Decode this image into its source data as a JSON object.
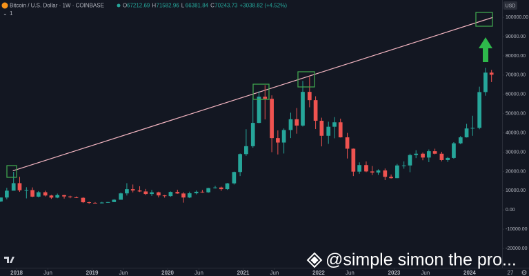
{
  "chart_data": {
    "type": "candlestick",
    "title": "Bitcoin / U.S. Dollar · 1W · COINBASE",
    "indicator_count": "1",
    "ohlc": [
      {
        "key": "O",
        "value": "67212.69"
      },
      {
        "key": "H",
        "value": "71582.96"
      },
      {
        "key": "L",
        "value": "66381.84"
      },
      {
        "key": "C",
        "value": "70243.73"
      }
    ],
    "change": "+3038.82 (+4.52%)",
    "currency": "USD",
    "x_extra_label": "27",
    "watermark": "@simple simon the pro...",
    "up_color": "#26a69a",
    "down_color": "#ef5350",
    "grid": false,
    "xlim": [
      2017.78,
      2024.43
    ],
    "ylim": [
      -30000,
      109000
    ],
    "xticks": [
      2018,
      {
        "value": 2018.415,
        "label": "Jun"
      },
      2019,
      {
        "value": 2019.415,
        "label": "Jun"
      },
      2020,
      {
        "value": 2020.415,
        "label": "Jun"
      },
      2021,
      {
        "value": 2021.415,
        "label": "Jun"
      },
      2022,
      {
        "value": 2022.415,
        "label": "Jun"
      },
      2023,
      {
        "value": 2023.415,
        "label": "Jun"
      },
      2024
    ],
    "yticks": [
      {
        "value": -20000,
        "label": "-20000.00"
      },
      {
        "value": -10000,
        "label": "-10000.00"
      },
      {
        "value": 0,
        "label": "0.00"
      },
      {
        "value": 10000,
        "label": "10000.00"
      },
      {
        "value": 20000,
        "label": "20000.00"
      },
      {
        "value": 30000,
        "label": "30000.00"
      },
      {
        "value": 40000,
        "label": "40000.00"
      },
      {
        "value": 50000,
        "label": "50000.00"
      },
      {
        "value": 60000,
        "label": "60000.00"
      },
      {
        "value": 70000,
        "label": "70000.00"
      },
      {
        "value": 80000,
        "label": "80000.00"
      },
      {
        "value": 90000,
        "label": "90000.00"
      },
      {
        "value": 100000,
        "label": "100000.00"
      }
    ],
    "trend_line": {
      "color": "#f4b6c2",
      "x": [
        2017.95,
        2024.31
      ],
      "y": [
        20300,
        100000
      ]
    },
    "x": [
      2017.79,
      2017.87,
      2017.96,
      2018.04,
      2018.13,
      2018.21,
      2018.29,
      2018.38,
      2018.46,
      2018.54,
      2018.63,
      2018.71,
      2018.79,
      2018.88,
      2018.96,
      2019.04,
      2019.13,
      2019.21,
      2019.29,
      2019.38,
      2019.46,
      2019.54,
      2019.63,
      2019.71,
      2019.79,
      2019.88,
      2019.96,
      2020.04,
      2020.13,
      2020.21,
      2020.29,
      2020.38,
      2020.46,
      2020.54,
      2020.63,
      2020.71,
      2020.79,
      2020.88,
      2020.96,
      2021.04,
      2021.13,
      2021.21,
      2021.29,
      2021.38,
      2021.46,
      2021.54,
      2021.63,
      2021.71,
      2021.79,
      2021.88,
      2021.96,
      2022.04,
      2022.13,
      2022.21,
      2022.29,
      2022.38,
      2022.46,
      2022.54,
      2022.63,
      2022.71,
      2022.79,
      2022.88,
      2022.96,
      2023.04,
      2023.13,
      2023.21,
      2023.29,
      2023.38,
      2023.46,
      2023.54,
      2023.63,
      2023.71,
      2023.79,
      2023.88,
      2023.96,
      2024.04,
      2024.13,
      2024.21,
      2024.29
    ],
    "open": [
      4400,
      6450,
      10000,
      13900,
      10200,
      10300,
      6900,
      9200,
      7500,
      6400,
      7700,
      7000,
      6600,
      6300,
      4000,
      3700,
      3450,
      3850,
      4100,
      5300,
      8600,
      10800,
      10100,
      9600,
      8300,
      9150,
      7550,
      7200,
      9350,
      8550,
      6450,
      8650,
      9450,
      9150,
      11350,
      11650,
      10800,
      13800,
      19700,
      29000,
      33100,
      45200,
      58800,
      57700,
      37300,
      35000,
      41500,
      47100,
      43800,
      61300,
      57000,
      46300,
      38500,
      43200,
      45500,
      37700,
      31800,
      19900,
      23300,
      20000,
      19400,
      20500,
      17200,
      16500,
      23100,
      23100,
      28500,
      29200,
      27200,
      30500,
      29200,
      25900,
      27000,
      34600,
      37700,
      42300,
      42600,
      61200,
      71300
    ],
    "high": [
      6450,
      11500,
      19800,
      17200,
      11800,
      11700,
      9800,
      9990,
      7800,
      8500,
      7800,
      7400,
      7000,
      6600,
      4300,
      4100,
      4200,
      4150,
      5600,
      9000,
      13900,
      13200,
      12300,
      10900,
      10400,
      9500,
      7750,
      9600,
      10500,
      9200,
      9500,
      10100,
      10400,
      11500,
      12500,
      12100,
      14000,
      19900,
      29300,
      41900,
      58300,
      61700,
      64800,
      59500,
      41300,
      42300,
      50500,
      52900,
      67000,
      69000,
      59000,
      47900,
      45800,
      48200,
      47400,
      40000,
      31900,
      24700,
      25200,
      22800,
      21100,
      21500,
      18400,
      23900,
      25200,
      29200,
      31000,
      29800,
      31400,
      31800,
      30200,
      27500,
      35200,
      38400,
      44700,
      48900,
      64000,
      73800,
      72700
    ],
    "low": [
      4100,
      5500,
      10800,
      9400,
      6000,
      6600,
      6500,
      7000,
      5750,
      6100,
      5900,
      6100,
      6200,
      3600,
      3150,
      3400,
      3400,
      3700,
      4050,
      5300,
      7500,
      9100,
      9300,
      7700,
      7300,
      6500,
      6400,
      6850,
      8400,
      3800,
      6150,
      8100,
      8900,
      8900,
      11100,
      9900,
      10400,
      13200,
      17600,
      28100,
      32300,
      45000,
      47000,
      30000,
      28800,
      29300,
      37300,
      39600,
      43300,
      53300,
      42000,
      33000,
      34300,
      37200,
      37600,
      26700,
      17600,
      18800,
      19600,
      18100,
      18200,
      15500,
      16300,
      16500,
      21400,
      19600,
      26900,
      25800,
      24800,
      28900,
      25200,
      24900,
      26600,
      34100,
      37600,
      38500,
      41900,
      59300,
      66400
    ],
    "close": [
      6450,
      10000,
      13900,
      10200,
      10300,
      6900,
      9200,
      7500,
      6400,
      7700,
      7000,
      6600,
      6300,
      4000,
      3700,
      3450,
      3850,
      4100,
      5300,
      8600,
      10800,
      10100,
      9600,
      8300,
      9150,
      7550,
      7200,
      9350,
      8550,
      6450,
      8650,
      9450,
      9150,
      11350,
      11650,
      10800,
      13800,
      19700,
      29000,
      33100,
      45200,
      58800,
      57700,
      37300,
      35000,
      41500,
      47100,
      43800,
      61300,
      57000,
      46300,
      38500,
      43200,
      45500,
      37700,
      31800,
      19900,
      23300,
      20000,
      19400,
      20500,
      17200,
      16500,
      23100,
      23100,
      28500,
      29200,
      27200,
      30500,
      29200,
      25900,
      27000,
      34600,
      37700,
      42300,
      42600,
      61200,
      71300,
      70200
    ]
  }
}
